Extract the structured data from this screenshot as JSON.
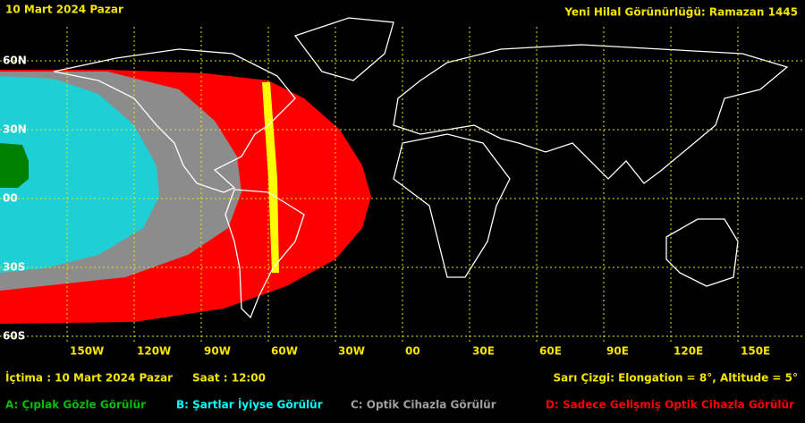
{
  "header": {
    "date": "10 Mart 2024 Pazar",
    "title": "Yeni Hilal Görünürlüğü: Ramazan 1445"
  },
  "map": {
    "lat_labels": [
      "60N",
      "30N",
      "00",
      "30S",
      "60S"
    ],
    "lon_labels": [
      "150W",
      "120W",
      "90W",
      "60W",
      "30W",
      "00",
      "30E",
      "60E",
      "90E",
      "120E",
      "150E"
    ]
  },
  "footer": {
    "conjunction": "İçtima : 10 Mart 2024 Pazar",
    "time": "Saat : 12:00",
    "yellow_line": "Sarı Çizgi: Elongation = 8°, Altitude = 5°"
  },
  "legend": [
    {
      "text": "A: Çıplak Gözle Görülür",
      "color": "#00c000"
    },
    {
      "text": "B: Şartlar İyiyse Görülür",
      "color": "#00ffff"
    },
    {
      "text": "C: Optik Cihazla Görülür",
      "color": "#a0a0a0"
    },
    {
      "text": "D: Sadece Gelişmiş Optik Cihazla Görülür",
      "color": "#ff0000"
    }
  ]
}
